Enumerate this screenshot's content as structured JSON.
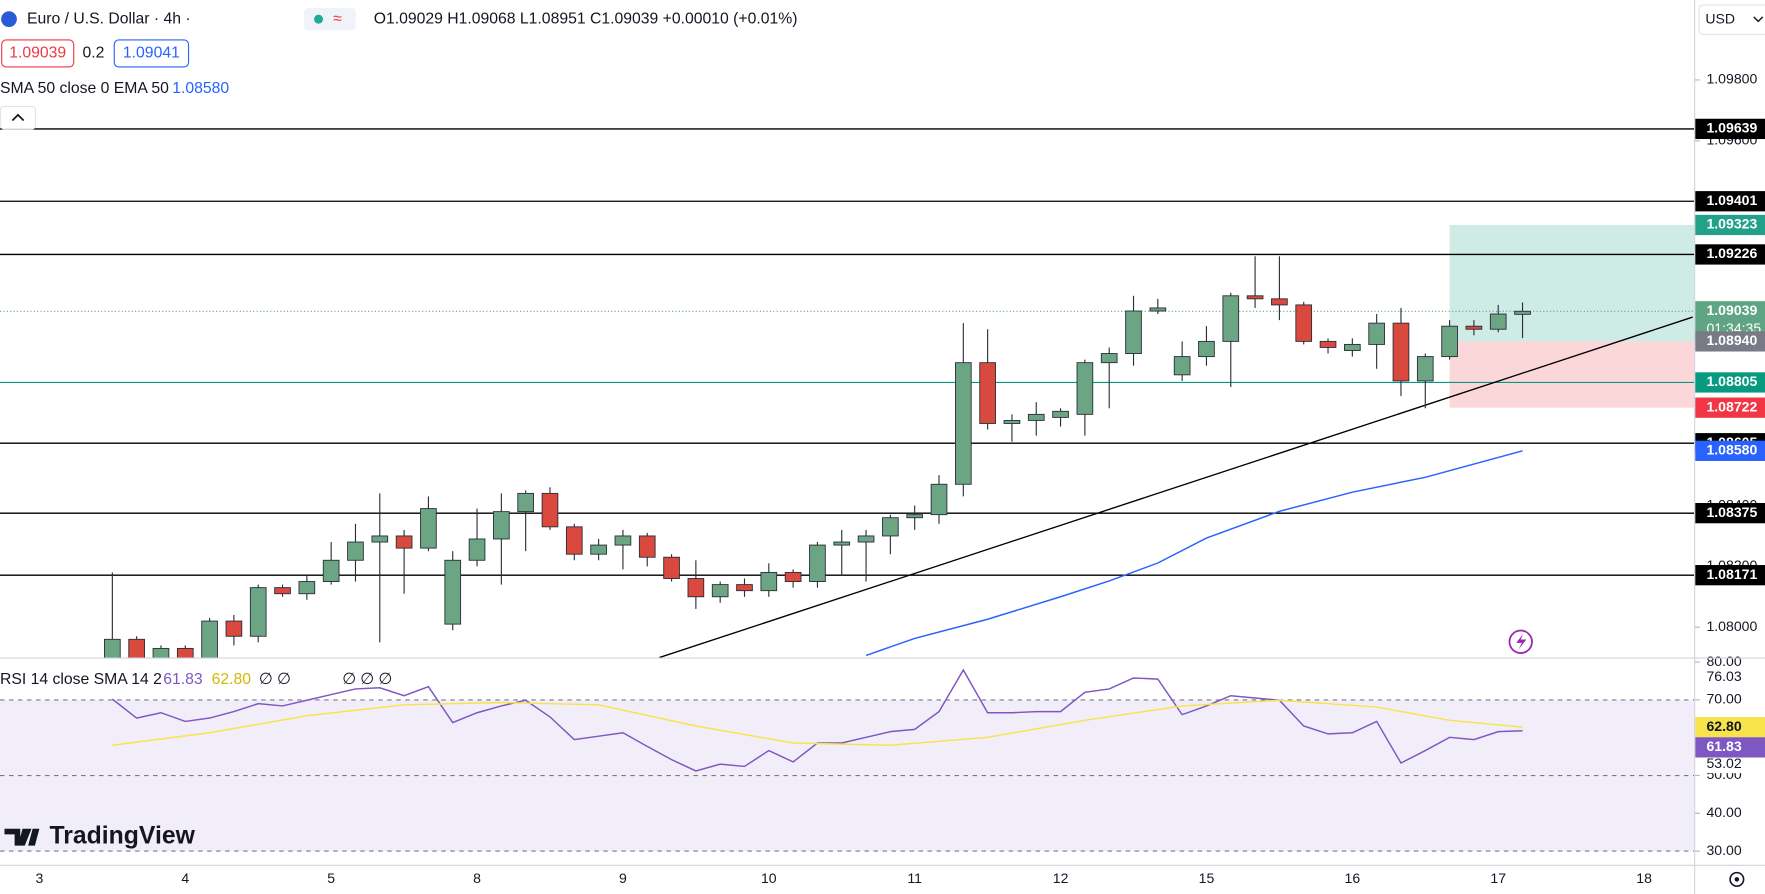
{
  "chart_data": {
    "type": "candlestick",
    "title": "Euro / U.S. Dollar · 4h ·",
    "ohlc_legend": "O1.09029 H1.09068 L1.08951 C1.09039 +0.00010 (+0.01%)",
    "bid": 1.09039,
    "spread": 0.2,
    "ask": 1.09041,
    "indicator_label": "SMA 50 close 0 EMA 50",
    "currency": "USD",
    "brand": "TradingView",
    "categories": [
      "3",
      null,
      null,
      null,
      null,
      null,
      "4",
      null,
      null,
      null,
      null,
      null,
      "5",
      null,
      null,
      null,
      null,
      null,
      "8",
      null,
      null,
      null,
      null,
      null,
      "9",
      null,
      null,
      null,
      null,
      null,
      "10",
      null,
      null,
      null,
      null,
      null,
      "11",
      null,
      null,
      null,
      null,
      null,
      "12",
      null,
      null,
      null,
      null,
      null,
      "15",
      null,
      null,
      null,
      null,
      null,
      "16",
      null,
      null,
      null,
      null,
      null,
      "17",
      null,
      null,
      null,
      null,
      null,
      "18"
    ],
    "open": [
      null,
      null,
      null,
      1.0784,
      1.0796,
      1.0789,
      1.0793,
      1.0789,
      1.0802,
      1.0797,
      1.0813,
      1.0811,
      1.0815,
      1.0822,
      1.0828,
      1.083,
      1.0826,
      1.0801,
      1.0822,
      1.0829,
      1.0838,
      1.0844,
      1.0833,
      1.0824,
      1.0827,
      1.083,
      1.0823,
      1.0816,
      1.081,
      1.0814,
      1.0812,
      1.0818,
      1.0815,
      1.0827,
      1.0828,
      1.083,
      1.0836,
      1.0837,
      1.0847,
      1.0887,
      1.0867,
      1.0868,
      1.0869,
      1.087,
      1.0887,
      1.089,
      1.0904,
      1.0883,
      1.0889,
      1.0894,
      1.0909,
      1.0908,
      1.0906,
      1.0894,
      1.0891,
      1.0893,
      1.09,
      1.0881,
      1.0889,
      1.0899,
      1.0898,
      1.09029,
      null,
      null,
      null,
      null,
      null
    ],
    "high": [
      null,
      null,
      null,
      1.0818,
      1.0797,
      1.0794,
      1.0794,
      1.0803,
      1.0804,
      1.0814,
      1.0814,
      1.0817,
      1.0828,
      1.0834,
      1.0844,
      1.0832,
      1.0843,
      1.0825,
      1.0839,
      1.0844,
      1.0845,
      1.0846,
      1.0834,
      1.0829,
      1.0832,
      1.0831,
      1.0824,
      1.0822,
      1.0815,
      1.0816,
      1.0821,
      1.0819,
      1.0828,
      1.0832,
      1.0832,
      1.0837,
      1.084,
      1.085,
      1.09,
      1.0898,
      1.087,
      1.0874,
      1.0872,
      1.0888,
      1.0892,
      1.0909,
      1.0908,
      1.0894,
      1.0899,
      1.091,
      1.0922,
      1.0922,
      1.0907,
      1.0895,
      1.0895,
      1.0903,
      1.0905,
      1.089,
      1.0901,
      1.0901,
      1.0906,
      1.09068,
      null,
      null,
      null,
      null,
      null
    ],
    "low": [
      null,
      null,
      null,
      1.078,
      1.0784,
      1.0787,
      1.0787,
      1.0786,
      1.0794,
      1.0795,
      1.081,
      1.0809,
      1.0814,
      1.0815,
      1.0795,
      1.0811,
      1.0825,
      1.0799,
      1.082,
      1.0814,
      1.0825,
      1.0832,
      1.0822,
      1.0822,
      1.0819,
      1.082,
      1.0815,
      1.0806,
      1.0808,
      1.081,
      1.081,
      1.0813,
      1.0813,
      1.0817,
      1.0815,
      1.0824,
      1.0832,
      1.0834,
      1.0843,
      1.0865,
      1.0861,
      1.0863,
      1.0866,
      1.0863,
      1.0872,
      1.0886,
      1.0903,
      1.0881,
      1.0886,
      1.0879,
      1.0905,
      1.0901,
      1.0893,
      1.089,
      1.0889,
      1.0885,
      1.0876,
      1.0872,
      1.0888,
      1.0896,
      1.0897,
      1.08951,
      null,
      null,
      null,
      null,
      null
    ],
    "close": [
      null,
      null,
      null,
      1.0796,
      1.0788,
      1.0793,
      1.0789,
      1.0802,
      1.0797,
      1.0813,
      1.0811,
      1.0815,
      1.0822,
      1.0828,
      1.083,
      1.0826,
      1.0839,
      1.0822,
      1.0829,
      1.0838,
      1.0844,
      1.0833,
      1.0824,
      1.0827,
      1.083,
      1.0823,
      1.0816,
      1.081,
      1.0814,
      1.0812,
      1.0818,
      1.0815,
      1.0827,
      1.0828,
      1.083,
      1.0836,
      1.0837,
      1.0847,
      1.0887,
      1.0867,
      1.0868,
      1.087,
      1.0871,
      1.0887,
      1.089,
      1.0904,
      1.0905,
      1.0889,
      1.0894,
      1.0909,
      1.0908,
      1.0906,
      1.0894,
      1.0892,
      1.0893,
      1.09,
      1.0881,
      1.0889,
      1.0899,
      1.0898,
      1.0903,
      1.09039,
      null,
      null,
      null,
      null,
      null
    ],
    "up_color": "#6ba583",
    "down_color": "#d9493e",
    "ylim": [
      1.079,
      1.10063
    ],
    "yticks": [
      {
        "value": 1.098,
        "label": "1.09800"
      },
      {
        "value": 1.096,
        "label": "1.09600"
      },
      {
        "value": 1.084,
        "label": "1.08400"
      },
      {
        "value": 1.082,
        "label": "1.08200"
      },
      {
        "value": 1.08,
        "label": "1.08000"
      }
    ],
    "levels": [
      1.09639,
      1.09401,
      1.09226,
      1.08605,
      1.08375,
      1.08171
    ],
    "level_color": "#000000",
    "support": 1.08805,
    "support_color": "#089981",
    "current": {
      "value": 1.09039,
      "countdown": "01:34:35",
      "color": "#5fa583"
    },
    "position": {
      "x": 58,
      "target": 1.09323,
      "entry": {
        "value": 1.0894,
        "label": "1.08940"
      },
      "stop": 1.08722
    },
    "trendline": {
      "x": [
        25.5,
        68
      ],
      "y": [
        1.079,
        1.0902
      ]
    },
    "ema": {
      "x": [
        34,
        36,
        39,
        42,
        44,
        46,
        48,
        51,
        54,
        57,
        61
      ],
      "values": [
        1.07907,
        1.07963,
        1.08026,
        1.081,
        1.08152,
        1.08211,
        1.08293,
        1.08381,
        1.08444,
        1.08493,
        1.0858
      ],
      "label": "1.08580",
      "color": "#2962ff"
    },
    "rsi": {
      "title": "RSI 14 close SMA 14 2",
      "extra_a": "∅ ∅",
      "extra_b": "∅ ∅ ∅",
      "color": "#7e57c2",
      "sma_color": "#f7e34b",
      "values": [
        null,
        null,
        null,
        70.2,
        65.2,
        66.6,
        64.3,
        65.2,
        66.9,
        69.0,
        68.4,
        69.9,
        71.4,
        72.9,
        73.2,
        71.1,
        73.5,
        64.0,
        66.6,
        68.4,
        69.9,
        65.5,
        59.5,
        60.4,
        61.3,
        57.7,
        54.2,
        51.2,
        53.0,
        52.4,
        56.6,
        53.6,
        58.6,
        58.6,
        60.1,
        61.6,
        62.2,
        66.9,
        77.9,
        66.6,
        66.6,
        66.9,
        66.9,
        72.0,
        72.9,
        75.8,
        75.5,
        66.1,
        68.4,
        71.1,
        70.5,
        69.9,
        63.1,
        61.0,
        61.3,
        64.3,
        53.3,
        56.6,
        60.1,
        59.5,
        61.6,
        61.83,
        null,
        null,
        null,
        null,
        null
      ],
      "sma": {
        "x": [
          3,
          7,
          11,
          15,
          19,
          23,
          27,
          31,
          35,
          39,
          43,
          47,
          51,
          55,
          58,
          61
        ],
        "values": [
          58.0,
          61.3,
          65.8,
          68.7,
          69.3,
          68.7,
          63.1,
          58.6,
          58.0,
          60.1,
          64.6,
          68.4,
          69.9,
          68.1,
          64.6,
          62.8
        ],
        "label": "62.80"
      },
      "ylim": [
        26.4,
        80.9
      ],
      "yticks": [
        {
          "value": 80,
          "label": "80.00"
        },
        {
          "value": 70,
          "label": "70.00"
        },
        {
          "value": 50,
          "label": "50.00"
        },
        {
          "value": 40,
          "label": "40.00"
        },
        {
          "value": 30,
          "label": "30.00"
        }
      ],
      "bands": [
        70,
        50,
        30
      ],
      "max": 76.03,
      "min": 53.02
    }
  }
}
